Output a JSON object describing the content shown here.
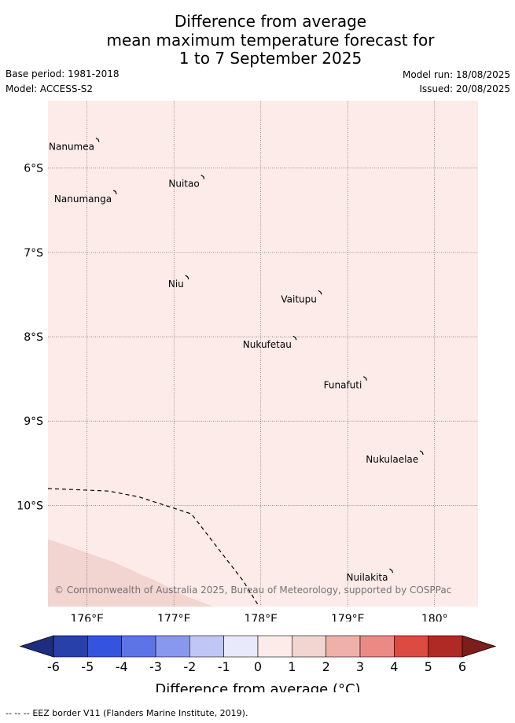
{
  "header": {
    "title_lines": [
      "Difference from average",
      "mean maximum temperature forecast for",
      "1 to 7 September 2025"
    ],
    "base_period": "Base period: 1981-2018",
    "model": "Model: ACCESS-S2",
    "model_run": "Model run: 18/08/2025",
    "issued": "Issued: 20/08/2025"
  },
  "map": {
    "lon_range": [
      175.55,
      180.5
    ],
    "lat_range": [
      -11.2,
      -5.2
    ],
    "lon_ticks": [
      176,
      177,
      178,
      179,
      180
    ],
    "lon_tick_labels": [
      "176°E",
      "177°E",
      "178°E",
      "179°E",
      "180°"
    ],
    "lat_ticks": [
      -6,
      -7,
      -8,
      -9,
      -10
    ],
    "lat_tick_labels": [
      "6°S",
      "7°S",
      "8°S",
      "9°S",
      "10°S"
    ],
    "background_category": "0 to 1",
    "colors": {
      "zero_to_one": "#fcebe9",
      "one_to_two": "#f2d4d1"
    },
    "islands": [
      {
        "name": "Nanumea",
        "lon": 176.12,
        "lat": -5.67
      },
      {
        "name": "Nuitao",
        "lon": 177.33,
        "lat": -6.11
      },
      {
        "name": "Nanumanga",
        "lon": 176.32,
        "lat": -6.29
      },
      {
        "name": "Niu",
        "lon": 177.15,
        "lat": -7.3
      },
      {
        "name": "Vaitupu",
        "lon": 178.68,
        "lat": -7.48
      },
      {
        "name": "Nukufetau",
        "lon": 178.39,
        "lat": -8.02
      },
      {
        "name": "Funafuti",
        "lon": 179.2,
        "lat": -8.5
      },
      {
        "name": "Nukulaelae",
        "lon": 179.85,
        "lat": -9.38
      },
      {
        "name": "Nuilakita",
        "lon": 179.5,
        "lat": -10.78
      }
    ],
    "eez_border": [
      [
        175.55,
        -9.8
      ],
      [
        176.25,
        -9.83
      ],
      [
        176.6,
        -9.9
      ],
      [
        176.9,
        -10.0
      ],
      [
        177.2,
        -10.1
      ],
      [
        177.5,
        -10.5
      ],
      [
        177.8,
        -10.9
      ],
      [
        177.98,
        -11.2
      ]
    ],
    "warm_region": [
      [
        175.55,
        -10.4
      ],
      [
        176.3,
        -10.67
      ],
      [
        176.8,
        -10.9
      ],
      [
        177.15,
        -11.08
      ],
      [
        177.45,
        -11.2
      ],
      [
        175.55,
        -11.2
      ]
    ],
    "copyright": "© Commonwealth of Australia 2025, Bureau of Meteorology, supported by COSPPac"
  },
  "colorbar": {
    "bins": [
      {
        "from": -6,
        "to": -5,
        "color": "#2840aa"
      },
      {
        "from": -5,
        "to": -4,
        "color": "#3454e0"
      },
      {
        "from": -4,
        "to": -3,
        "color": "#5c74e6"
      },
      {
        "from": -3,
        "to": -2,
        "color": "#8898ee"
      },
      {
        "from": -2,
        "to": -1,
        "color": "#c0c7f6"
      },
      {
        "from": -1,
        "to": 0,
        "color": "#e8eafc"
      },
      {
        "from": 0,
        "to": 1,
        "color": "#fcebe9"
      },
      {
        "from": 1,
        "to": 2,
        "color": "#f2d4d1"
      },
      {
        "from": 2,
        "to": 3,
        "color": "#efb0aa"
      },
      {
        "from": 3,
        "to": 4,
        "color": "#eb8a84"
      },
      {
        "from": 4,
        "to": 5,
        "color": "#dc4a42"
      },
      {
        "from": 5,
        "to": 6,
        "color": "#b02a24"
      }
    ],
    "under_color": "#1f2d80",
    "over_color": "#7e1e1a",
    "tick_labels": [
      "-6",
      "-5",
      "-4",
      "-3",
      "-2",
      "-1",
      "0",
      "1",
      "2",
      "3",
      "4",
      "5",
      "6"
    ],
    "label": "Difference from average (°C)"
  },
  "footer": {
    "legend_symbol": "-- -- --",
    "legend_text": "EEZ border V11 (Flanders Marine Institute, 2019)."
  }
}
